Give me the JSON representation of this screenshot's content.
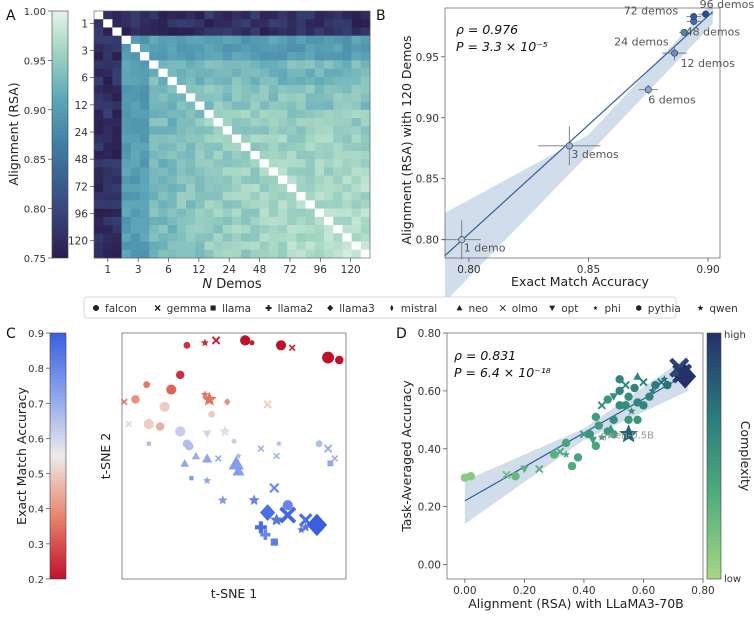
{
  "chart_data": [
    {
      "panel": "A",
      "type": "heatmap",
      "xlabel": "N Demos",
      "xlabel_italic_part": "N",
      "xlabel_rest": " Demos",
      "colorbar_label": "Alignment (RSA)",
      "colorbar_ticks": [
        "1.00",
        "0.95",
        "0.90",
        "0.85",
        "0.80",
        "0.75"
      ],
      "colorbar_range": [
        0.75,
        1.0
      ],
      "colors": [
        "#2b1e4e",
        "#38487c",
        "#3f7da4",
        "#5fa8b8",
        "#a8d8c4",
        "#e3f4eb"
      ],
      "tick_labels": [
        "1",
        "3",
        "6",
        "12",
        "24",
        "48",
        "72",
        "96",
        "120"
      ],
      "n_cells": 30,
      "groups": 10,
      "group_bias": [
        0.78,
        0.9,
        0.93,
        0.94,
        0.95,
        0.955,
        0.96,
        0.965,
        0.97,
        0.975
      ]
    },
    {
      "panel": "B",
      "type": "scatter",
      "xlabel": "Exact Match Accuracy",
      "ylabel": "Alignment (RSA) with 120 Demos",
      "xlim": [
        0.79,
        0.905
      ],
      "ylim": [
        0.785,
        0.99
      ],
      "xticks": [
        "0.80",
        "0.85",
        "0.90"
      ],
      "yticks": [
        "0.80",
        "0.85",
        "0.90",
        "0.95"
      ],
      "stat_rho": "ρ = 0.976",
      "stat_p": "P = 3.3 × 10⁻⁵",
      "points": [
        {
          "label": "1 demo",
          "x": 0.797,
          "y": 0.8,
          "xerr": 0.008,
          "yerr": 0.016,
          "color": "#b5c7dd"
        },
        {
          "label": "3 demos",
          "x": 0.842,
          "y": 0.877,
          "xerr": 0.013,
          "yerr": 0.016,
          "color": "#9fb6d4"
        },
        {
          "label": "6 demos",
          "x": 0.875,
          "y": 0.923,
          "xerr": 0.004,
          "yerr": 0.004,
          "color": "#8aa7cd"
        },
        {
          "label": "12 demos",
          "x": 0.886,
          "y": 0.953,
          "xerr": 0.005,
          "yerr": 0.006,
          "color": "#6a8fc0"
        },
        {
          "label": "24 demos",
          "x": 0.89,
          "y": 0.97,
          "xerr": 0.002,
          "yerr": 0.002,
          "color": "#5681b8"
        },
        {
          "label": "48 demos",
          "x": 0.894,
          "y": 0.979,
          "xerr": 0.003,
          "yerr": 0.003,
          "color": "#3f6fab"
        },
        {
          "label": "72 demos",
          "x": 0.894,
          "y": 0.983,
          "xerr": 0.003,
          "yerr": 0.002,
          "color": "#2f5f9e"
        },
        {
          "label": "96 demos",
          "x": 0.899,
          "y": 0.985,
          "xerr": 0.003,
          "yerr": 0.002,
          "color": "#1f4f91"
        }
      ],
      "fit": {
        "x0": 0.79,
        "y0": 0.787,
        "x1": 0.902,
        "y1": 0.987
      },
      "band": {
        "x0": 0.79,
        "lo0": 0.749,
        "hi0": 0.822,
        "xm": 0.85,
        "lom": 0.87,
        "him": 0.886,
        "x1": 0.902,
        "lo1": 0.977,
        "hi1": 0.995
      }
    },
    {
      "panel": "C",
      "type": "scatter",
      "xlabel": "t-SNE 1",
      "ylabel": "t-SNE 2",
      "colorbar_label": "Exact Match Accuracy",
      "colorbar_ticks": [
        "0.9",
        "0.8",
        "0.7",
        "0.6",
        "0.5",
        "0.4",
        "0.3",
        "0.2"
      ],
      "colorbar_range": [
        0.2,
        0.9
      ],
      "points": [
        {
          "m": "circle",
          "x": 0.55,
          "y": 0.97,
          "v": 0.2,
          "s": 6
        },
        {
          "m": "x",
          "x": 0.42,
          "y": 0.97,
          "v": 0.22,
          "s": 5
        },
        {
          "m": "circle",
          "x": 0.29,
          "y": 0.95,
          "v": 0.25,
          "s": 4
        },
        {
          "m": "star",
          "x": 0.37,
          "y": 0.96,
          "v": 0.24,
          "s": 5
        },
        {
          "m": "circle",
          "x": 0.71,
          "y": 0.95,
          "v": 0.2,
          "s": 6
        },
        {
          "m": "x",
          "x": 0.76,
          "y": 0.94,
          "v": 0.22,
          "s": 4
        },
        {
          "m": "circle",
          "x": 0.58,
          "y": 0.96,
          "v": 0.22,
          "s": 3
        },
        {
          "m": "circle",
          "x": 0.92,
          "y": 0.9,
          "v": 0.2,
          "s": 7
        },
        {
          "m": "circle",
          "x": 0.97,
          "y": 0.89,
          "v": 0.2,
          "s": 5
        },
        {
          "m": "circle",
          "x": 0.26,
          "y": 0.83,
          "v": 0.25,
          "s": 5
        },
        {
          "m": "circle",
          "x": 0.22,
          "y": 0.77,
          "v": 0.33,
          "s": 6
        },
        {
          "m": "star",
          "x": 0.37,
          "y": 0.75,
          "v": 0.35,
          "s": 5
        },
        {
          "m": "circle",
          "x": 0.11,
          "y": 0.79,
          "v": 0.36,
          "s": 4
        },
        {
          "m": "circle",
          "x": 0.19,
          "y": 0.7,
          "v": 0.5,
          "s": 6
        },
        {
          "m": "circle",
          "x": 0.06,
          "y": 0.73,
          "v": 0.4,
          "s": 5
        },
        {
          "m": "x",
          "x": 0.01,
          "y": 0.72,
          "v": 0.35,
          "s": 4
        },
        {
          "m": "circle",
          "x": 0.12,
          "y": 0.63,
          "v": 0.5,
          "s": 6
        },
        {
          "m": "circle",
          "x": 0.17,
          "y": 0.62,
          "v": 0.45,
          "s": 5
        },
        {
          "m": "star",
          "x": 0.39,
          "y": 0.73,
          "v": 0.35,
          "s": 9
        },
        {
          "m": "diamond",
          "x": 0.47,
          "y": 0.72,
          "v": 0.4,
          "s": 4
        },
        {
          "m": "x",
          "x": 0.65,
          "y": 0.71,
          "v": 0.5,
          "s": 5
        },
        {
          "m": "circle",
          "x": 0.4,
          "y": 0.67,
          "v": 0.5,
          "s": 4
        },
        {
          "m": "tri-down",
          "x": 0.38,
          "y": 0.59,
          "v": 0.6,
          "s": 5
        },
        {
          "m": "star",
          "x": 0.46,
          "y": 0.6,
          "v": 0.58,
          "s": 7
        },
        {
          "m": "circle",
          "x": 0.26,
          "y": 0.6,
          "v": 0.62,
          "s": 6
        },
        {
          "m": "x",
          "x": 0.03,
          "y": 0.63,
          "v": 0.6,
          "s": 4
        },
        {
          "m": "circle",
          "x": 0.29,
          "y": 0.55,
          "v": 0.65,
          "s": 5
        },
        {
          "m": "square",
          "x": 0.12,
          "y": 0.55,
          "v": 0.66,
          "s": 3
        },
        {
          "m": "circle",
          "x": 0.3,
          "y": 0.54,
          "v": 0.66,
          "s": 5
        },
        {
          "m": "circle",
          "x": 0.5,
          "y": 0.56,
          "v": 0.62,
          "s": 3
        },
        {
          "m": "x",
          "x": 0.62,
          "y": 0.53,
          "v": 0.7,
          "s": 4
        },
        {
          "m": "star",
          "x": 0.7,
          "y": 0.55,
          "v": 0.66,
          "s": 4
        },
        {
          "m": "circle",
          "x": 0.88,
          "y": 0.55,
          "v": 0.66,
          "s": 4
        },
        {
          "m": "x",
          "x": 0.92,
          "y": 0.53,
          "v": 0.7,
          "s": 5
        },
        {
          "m": "x",
          "x": 0.95,
          "y": 0.49,
          "v": 0.7,
          "s": 4
        },
        {
          "m": "square",
          "x": 0.93,
          "y": 0.47,
          "v": 0.72,
          "s": 4
        },
        {
          "m": "x",
          "x": 0.69,
          "y": 0.5,
          "v": 0.68,
          "s": 4
        },
        {
          "m": "star",
          "x": 0.52,
          "y": 0.5,
          "v": 0.68,
          "s": 4
        },
        {
          "m": "tri-up",
          "x": 0.33,
          "y": 0.5,
          "v": 0.7,
          "s": 5
        },
        {
          "m": "tri-up",
          "x": 0.38,
          "y": 0.49,
          "v": 0.72,
          "s": 6
        },
        {
          "m": "x",
          "x": 0.43,
          "y": 0.49,
          "v": 0.72,
          "s": 4
        },
        {
          "m": "tri-up",
          "x": 0.28,
          "y": 0.47,
          "v": 0.72,
          "s": 5
        },
        {
          "m": "star",
          "x": 0.38,
          "y": 0.4,
          "v": 0.72,
          "s": 5
        },
        {
          "m": "square",
          "x": 0.31,
          "y": 0.41,
          "v": 0.74,
          "s": 3
        },
        {
          "m": "tri-up",
          "x": 0.51,
          "y": 0.47,
          "v": 0.74,
          "s": 9
        },
        {
          "m": "tri-up",
          "x": 0.52,
          "y": 0.44,
          "v": 0.74,
          "s": 7
        },
        {
          "m": "x",
          "x": 0.68,
          "y": 0.37,
          "v": 0.78,
          "s": 6
        },
        {
          "m": "star",
          "x": 0.59,
          "y": 0.32,
          "v": 0.8,
          "s": 7
        },
        {
          "m": "star",
          "x": 0.45,
          "y": 0.32,
          "v": 0.75,
          "s": 6
        },
        {
          "m": "circle",
          "x": 0.74,
          "y": 0.3,
          "v": 0.8,
          "s": 6
        },
        {
          "m": "diamond",
          "x": 0.65,
          "y": 0.27,
          "v": 0.86,
          "s": 9
        },
        {
          "m": "star",
          "x": 0.69,
          "y": 0.24,
          "v": 0.84,
          "s": 8
        },
        {
          "m": "x",
          "x": 0.74,
          "y": 0.26,
          "v": 0.88,
          "s": 10
        },
        {
          "m": "x",
          "x": 0.82,
          "y": 0.24,
          "v": 0.86,
          "s": 8
        },
        {
          "m": "diamond",
          "x": 0.87,
          "y": 0.22,
          "v": 0.9,
          "s": 12
        },
        {
          "m": "plus",
          "x": 0.62,
          "y": 0.21,
          "v": 0.86,
          "s": 7
        },
        {
          "m": "square",
          "x": 0.68,
          "y": 0.15,
          "v": 0.82,
          "s": 5
        },
        {
          "m": "plus",
          "x": 0.64,
          "y": 0.18,
          "v": 0.8,
          "s": 6
        },
        {
          "m": "star",
          "x": 0.82,
          "y": 0.21,
          "v": 0.84,
          "s": 6
        },
        {
          "m": "star",
          "x": 0.8,
          "y": 0.2,
          "v": 0.84,
          "s": 5
        }
      ]
    },
    {
      "panel": "D",
      "type": "scatter",
      "xlabel": "Alignment (RSA) with LLaMA3-70B",
      "ylabel": "Task-Averaged Accuracy",
      "colorbar_label": "Complexity",
      "colorbar_ticks": [
        "high",
        "low"
      ],
      "xlim": [
        -0.06,
        0.8
      ],
      "ylim": [
        -0.05,
        0.8
      ],
      "xticks": [
        "0.00",
        "0.20",
        "0.40",
        "0.60",
        "0.80"
      ],
      "yticks": [
        "0.00",
        "0.20",
        "0.40",
        "0.60",
        "0.80"
      ],
      "stat_rho": "ρ = 0.831",
      "stat_p": "P = 6.4 × 10⁻¹⁸",
      "annotation": "qwen-0.5B",
      "annotation_xy": [
        0.55,
        0.45
      ],
      "fit": {
        "x0": 0.0,
        "y0": 0.22,
        "x1": 0.75,
        "y1": 0.66
      },
      "band": {
        "x0": 0.0,
        "lo0": 0.14,
        "hi0": 0.29,
        "xm": 0.4,
        "lom": 0.43,
        "him": 0.47,
        "x1": 0.75,
        "lo1": 0.6,
        "hi1": 0.72
      },
      "points": [
        {
          "m": "circle",
          "x": 0.0,
          "y": 0.3,
          "c": 0.1
        },
        {
          "m": "circle",
          "x": 0.02,
          "y": 0.305,
          "c": 0.12
        },
        {
          "m": "x",
          "x": 0.14,
          "y": 0.31,
          "c": 0.2
        },
        {
          "m": "circle",
          "x": 0.17,
          "y": 0.305,
          "c": 0.25
        },
        {
          "m": "tri-down",
          "x": 0.2,
          "y": 0.33,
          "c": 0.3
        },
        {
          "m": "x",
          "x": 0.25,
          "y": 0.33,
          "c": 0.3
        },
        {
          "m": "circle",
          "x": 0.3,
          "y": 0.38,
          "c": 0.3
        },
        {
          "m": "x",
          "x": 0.32,
          "y": 0.39,
          "c": 0.35
        },
        {
          "m": "star",
          "x": 0.34,
          "y": 0.38,
          "c": 0.35
        },
        {
          "m": "circle",
          "x": 0.34,
          "y": 0.42,
          "c": 0.4
        },
        {
          "m": "circle",
          "x": 0.38,
          "y": 0.37,
          "c": 0.4
        },
        {
          "m": "circle",
          "x": 0.36,
          "y": 0.34,
          "c": 0.35
        },
        {
          "m": "x",
          "x": 0.4,
          "y": 0.45,
          "c": 0.45
        },
        {
          "m": "circle",
          "x": 0.42,
          "y": 0.45,
          "c": 0.5
        },
        {
          "m": "tri-down",
          "x": 0.43,
          "y": 0.43,
          "c": 0.45
        },
        {
          "m": "circle",
          "x": 0.44,
          "y": 0.41,
          "c": 0.4
        },
        {
          "m": "circle",
          "x": 0.45,
          "y": 0.48,
          "c": 0.45
        },
        {
          "m": "star",
          "x": 0.46,
          "y": 0.44,
          "c": 0.5
        },
        {
          "m": "x",
          "x": 0.46,
          "y": 0.55,
          "c": 0.55
        },
        {
          "m": "circle",
          "x": 0.48,
          "y": 0.46,
          "c": 0.5
        },
        {
          "m": "tri-up",
          "x": 0.49,
          "y": 0.47,
          "c": 0.5
        },
        {
          "m": "circle",
          "x": 0.5,
          "y": 0.5,
          "c": 0.55
        },
        {
          "m": "circle",
          "x": 0.5,
          "y": 0.45,
          "c": 0.45
        },
        {
          "m": "tri-down",
          "x": 0.5,
          "y": 0.58,
          "c": 0.55
        },
        {
          "m": "circle",
          "x": 0.52,
          "y": 0.55,
          "c": 0.55
        },
        {
          "m": "circle",
          "x": 0.52,
          "y": 0.6,
          "c": 0.6
        },
        {
          "m": "circle",
          "x": 0.54,
          "y": 0.55,
          "c": 0.55
        },
        {
          "m": "x",
          "x": 0.54,
          "y": 0.62,
          "c": 0.6
        },
        {
          "m": "circle",
          "x": 0.55,
          "y": 0.5,
          "c": 0.5
        },
        {
          "m": "circle",
          "x": 0.55,
          "y": 0.58,
          "c": 0.55
        },
        {
          "m": "star",
          "x": 0.56,
          "y": 0.53,
          "c": 0.55
        },
        {
          "m": "circle",
          "x": 0.57,
          "y": 0.61,
          "c": 0.6
        },
        {
          "m": "circle",
          "x": 0.58,
          "y": 0.56,
          "c": 0.6
        },
        {
          "m": "circle",
          "x": 0.58,
          "y": 0.5,
          "c": 0.5
        },
        {
          "m": "circle",
          "x": 0.6,
          "y": 0.55,
          "c": 0.6
        },
        {
          "m": "x",
          "x": 0.6,
          "y": 0.63,
          "c": 0.65
        },
        {
          "m": "circle",
          "x": 0.62,
          "y": 0.58,
          "c": 0.6
        },
        {
          "m": "star",
          "x": 0.63,
          "y": 0.6,
          "c": 0.65
        },
        {
          "m": "circle",
          "x": 0.64,
          "y": 0.62,
          "c": 0.65
        },
        {
          "m": "x",
          "x": 0.66,
          "y": 0.63,
          "c": 0.7
        },
        {
          "m": "circle",
          "x": 0.52,
          "y": 0.64,
          "c": 0.6
        },
        {
          "m": "circle",
          "x": 0.48,
          "y": 0.57,
          "c": 0.5
        },
        {
          "m": "circle",
          "x": 0.44,
          "y": 0.51,
          "c": 0.45
        },
        {
          "m": "tri-up",
          "x": 0.58,
          "y": 0.65,
          "c": 0.6
        },
        {
          "m": "circle",
          "x": 0.68,
          "y": 0.62,
          "c": 0.7
        },
        {
          "m": "star",
          "x": 0.67,
          "y": 0.64,
          "c": 0.7
        },
        {
          "m": "star",
          "x": 0.55,
          "y": 0.45,
          "c": 0.78,
          "big": true
        },
        {
          "m": "x",
          "x": 0.72,
          "y": 0.68,
          "c": 0.9,
          "big": true
        },
        {
          "m": "x",
          "x": 0.73,
          "y": 0.66,
          "c": 0.95,
          "big": true
        },
        {
          "m": "diamond",
          "x": 0.74,
          "y": 0.65,
          "c": 1.0,
          "big": true
        },
        {
          "m": "star",
          "x": 0.71,
          "y": 0.66,
          "c": 0.85
        }
      ]
    }
  ],
  "panel_labels": {
    "a": "A",
    "b": "B",
    "c": "C",
    "d": "D"
  },
  "legend": {
    "items": [
      {
        "label": "falcon",
        "marker": "circle"
      },
      {
        "label": "gemma",
        "marker": "x"
      },
      {
        "label": "llama",
        "marker": "square"
      },
      {
        "label": "llama2",
        "marker": "plus"
      },
      {
        "label": "llama3",
        "marker": "diamond"
      },
      {
        "label": "mistral",
        "marker": "thin-diamond"
      },
      {
        "label": "neo",
        "marker": "tri-up"
      },
      {
        "label": "olmo",
        "marker": "small-x"
      },
      {
        "label": "opt",
        "marker": "tri-down"
      },
      {
        "label": "phi",
        "marker": "small-star"
      },
      {
        "label": "pythia",
        "marker": "hexagon"
      },
      {
        "label": "qwen",
        "marker": "star"
      }
    ]
  }
}
